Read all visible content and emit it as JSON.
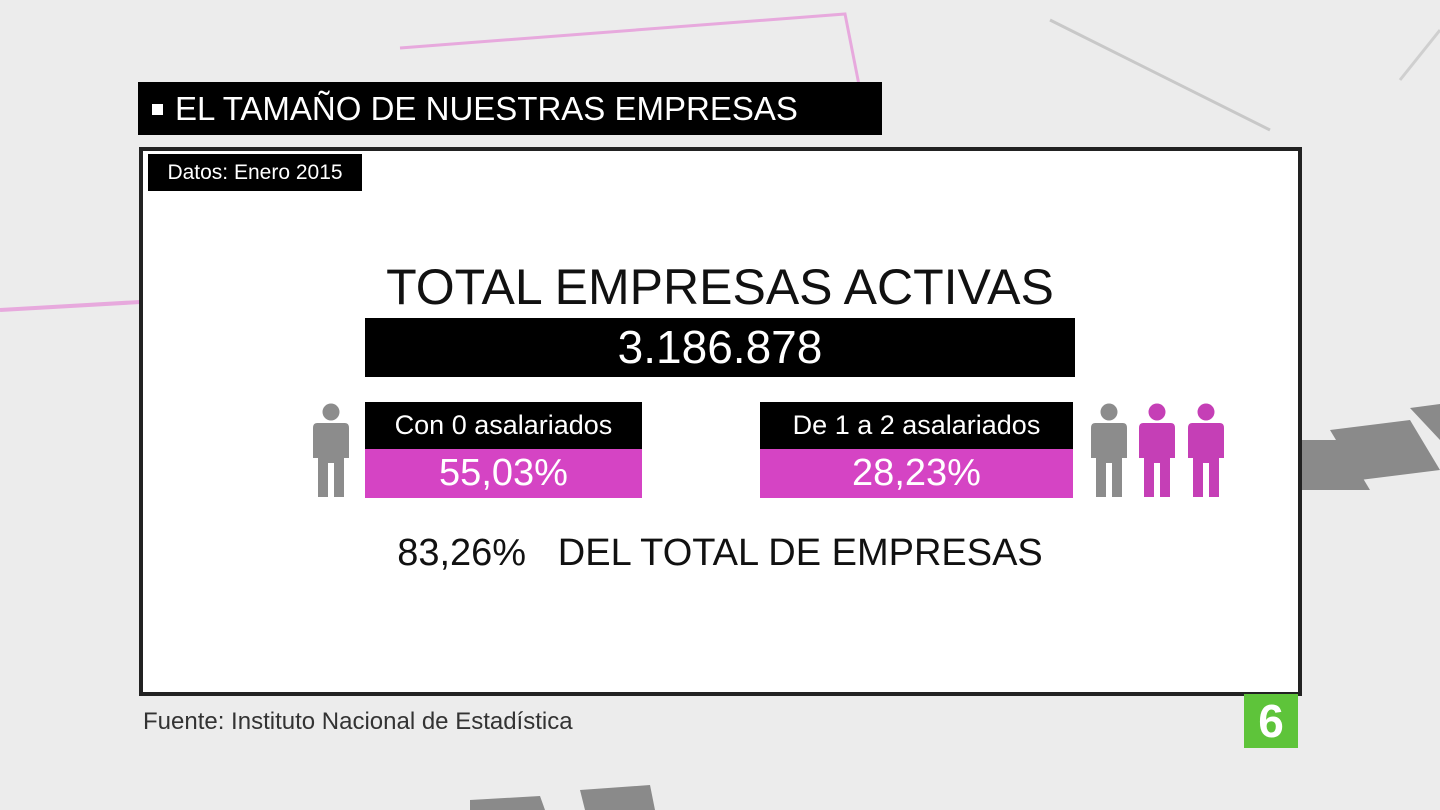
{
  "header": {
    "title": "EL TAMAÑO DE NUESTRAS EMPRESAS",
    "date_note": "Datos: Enero 2015"
  },
  "panel": {
    "headline": "TOTAL EMPRESAS ACTIVAS",
    "total": "3.186.878",
    "groups": [
      {
        "label": "Con 0 asalariados",
        "percent": "55,03%"
      },
      {
        "label": "De 1 a 2 asalariados",
        "percent": "28,23%"
      }
    ],
    "summary": {
      "percent": "83,26%",
      "text": "DEL TOTAL DE EMPRESAS"
    }
  },
  "footer": {
    "source": "Fuente: Instituto Nacional de Estadística",
    "logo": "6"
  }
}
